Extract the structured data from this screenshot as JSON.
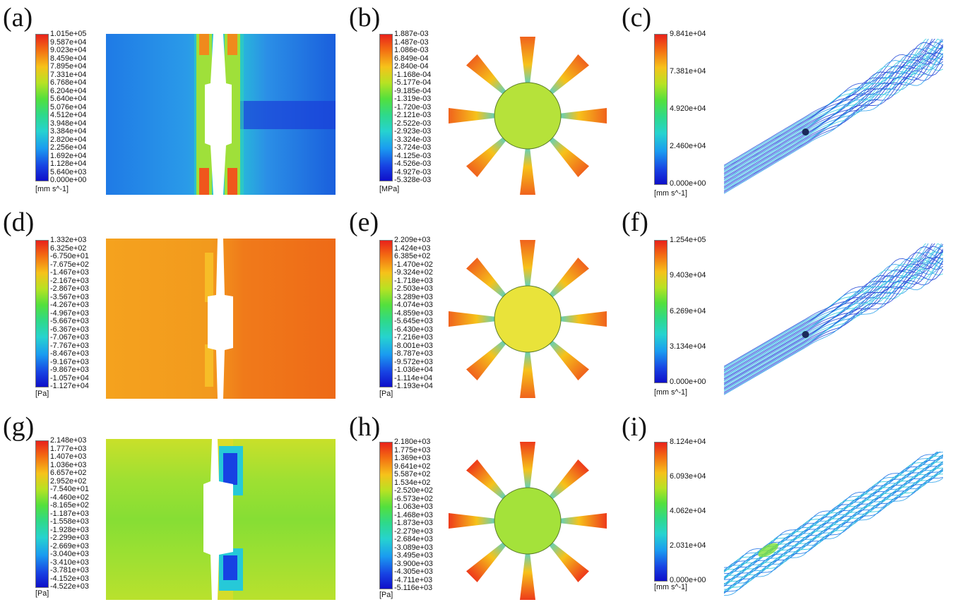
{
  "panels": [
    {
      "id": "a",
      "label": "(a)",
      "unit": "[mm s^-1]",
      "ticks": [
        "1.015e+05",
        "9.587e+04",
        "9.023e+04",
        "8.459e+04",
        "7.895e+04",
        "7.331e+04",
        "6.768e+04",
        "6.204e+04",
        "5.640e+04",
        "5.076e+04",
        "4.512e+04",
        "3.948e+04",
        "3.384e+04",
        "2.820e+04",
        "2.256e+04",
        "1.692e+04",
        "1.128e+04",
        "5.640e+03",
        "0.000e+00"
      ]
    },
    {
      "id": "b",
      "label": "(b)",
      "unit": "[MPa]",
      "ticks": [
        "1.887e-03",
        "1.487e-03",
        "1.086e-03",
        "6.849e-04",
        "2.840e-04",
        "-1.168e-04",
        "-5.177e-04",
        "-9.185e-04",
        "-1.319e-03",
        "-1.720e-03",
        "-2.121e-03",
        "-2.522e-03",
        "-2.923e-03",
        "-3.324e-03",
        "-3.724e-03",
        "-4.125e-03",
        "-4.526e-03",
        "-4.927e-03",
        "-5.328e-03"
      ]
    },
    {
      "id": "c",
      "label": "(c)",
      "unit": "[mm s^-1]",
      "ticks": [
        "9.841e+04",
        "7.381e+04",
        "4.920e+04",
        "2.460e+04",
        "0.000e+00"
      ]
    },
    {
      "id": "d",
      "label": "(d)",
      "unit": "[Pa]",
      "ticks": [
        "1.332e+03",
        "6.325e+02",
        "-6.750e+01",
        "-7.675e+02",
        "-1.467e+03",
        "-2.167e+03",
        "-2.867e+03",
        "-3.567e+03",
        "-4.267e+03",
        "-4.967e+03",
        "-5.667e+03",
        "-6.367e+03",
        "-7.067e+03",
        "-7.767e+03",
        "-8.467e+03",
        "-9.167e+03",
        "-9.867e+03",
        "-1.057e+04",
        "-1.127e+04"
      ]
    },
    {
      "id": "e",
      "label": "(e)",
      "unit": "[Pa]",
      "ticks": [
        "2.209e+03",
        "1.424e+03",
        "6.385e+02",
        "-1.470e+02",
        "-9.324e+02",
        "-1.718e+03",
        "-2.503e+03",
        "-3.289e+03",
        "-4.074e+03",
        "-4.859e+03",
        "-5.645e+03",
        "-6.430e+03",
        "-7.216e+03",
        "-8.001e+03",
        "-8.787e+03",
        "-9.572e+03",
        "-1.036e+04",
        "-1.114e+04",
        "-1.193e+04"
      ]
    },
    {
      "id": "f",
      "label": "(f)",
      "unit": "[mm s^-1]",
      "ticks": [
        "1.254e+05",
        "9.403e+04",
        "6.269e+04",
        "3.134e+04",
        "0.000e+00"
      ]
    },
    {
      "id": "g",
      "label": "(g)",
      "unit": "[Pa]",
      "ticks": [
        "2.148e+03",
        "1.777e+03",
        "1.407e+03",
        "1.036e+03",
        "6.657e+02",
        "2.952e+02",
        "-7.540e+01",
        "-4.460e+02",
        "-8.165e+02",
        "-1.187e+03",
        "-1.558e+03",
        "-1.928e+03",
        "-2.299e+03",
        "-2.669e+03",
        "-3.040e+03",
        "-3.410e+03",
        "-3.781e+03",
        "-4.152e+03",
        "-4.522e+03"
      ]
    },
    {
      "id": "h",
      "label": "(h)",
      "unit": "[Pa]",
      "ticks": [
        "2.180e+03",
        "1.775e+03",
        "1.369e+03",
        "9.641e+02",
        "5.587e+02",
        "1.534e+02",
        "-2.520e+02",
        "-6.573e+02",
        "-1.063e+03",
        "-1.468e+03",
        "-1.873e+03",
        "-2.279e+03",
        "-2.684e+03",
        "-3.089e+03",
        "-3.495e+03",
        "-3.900e+03",
        "-4.305e+03",
        "-4.711e+03",
        "-5.116e+03"
      ]
    },
    {
      "id": "i",
      "label": "(i)",
      "unit": "[mm s^-1]",
      "ticks": [
        "8.124e+04",
        "6.093e+04",
        "4.062e+04",
        "2.031e+04",
        "0.000e+00"
      ]
    }
  ],
  "colors": {
    "velocity_bg": "#1f6fe0",
    "pressure_d_bg": "#f08a1c",
    "pressure_g_bg": "#8fe23a",
    "hub": "#a4e23a"
  }
}
